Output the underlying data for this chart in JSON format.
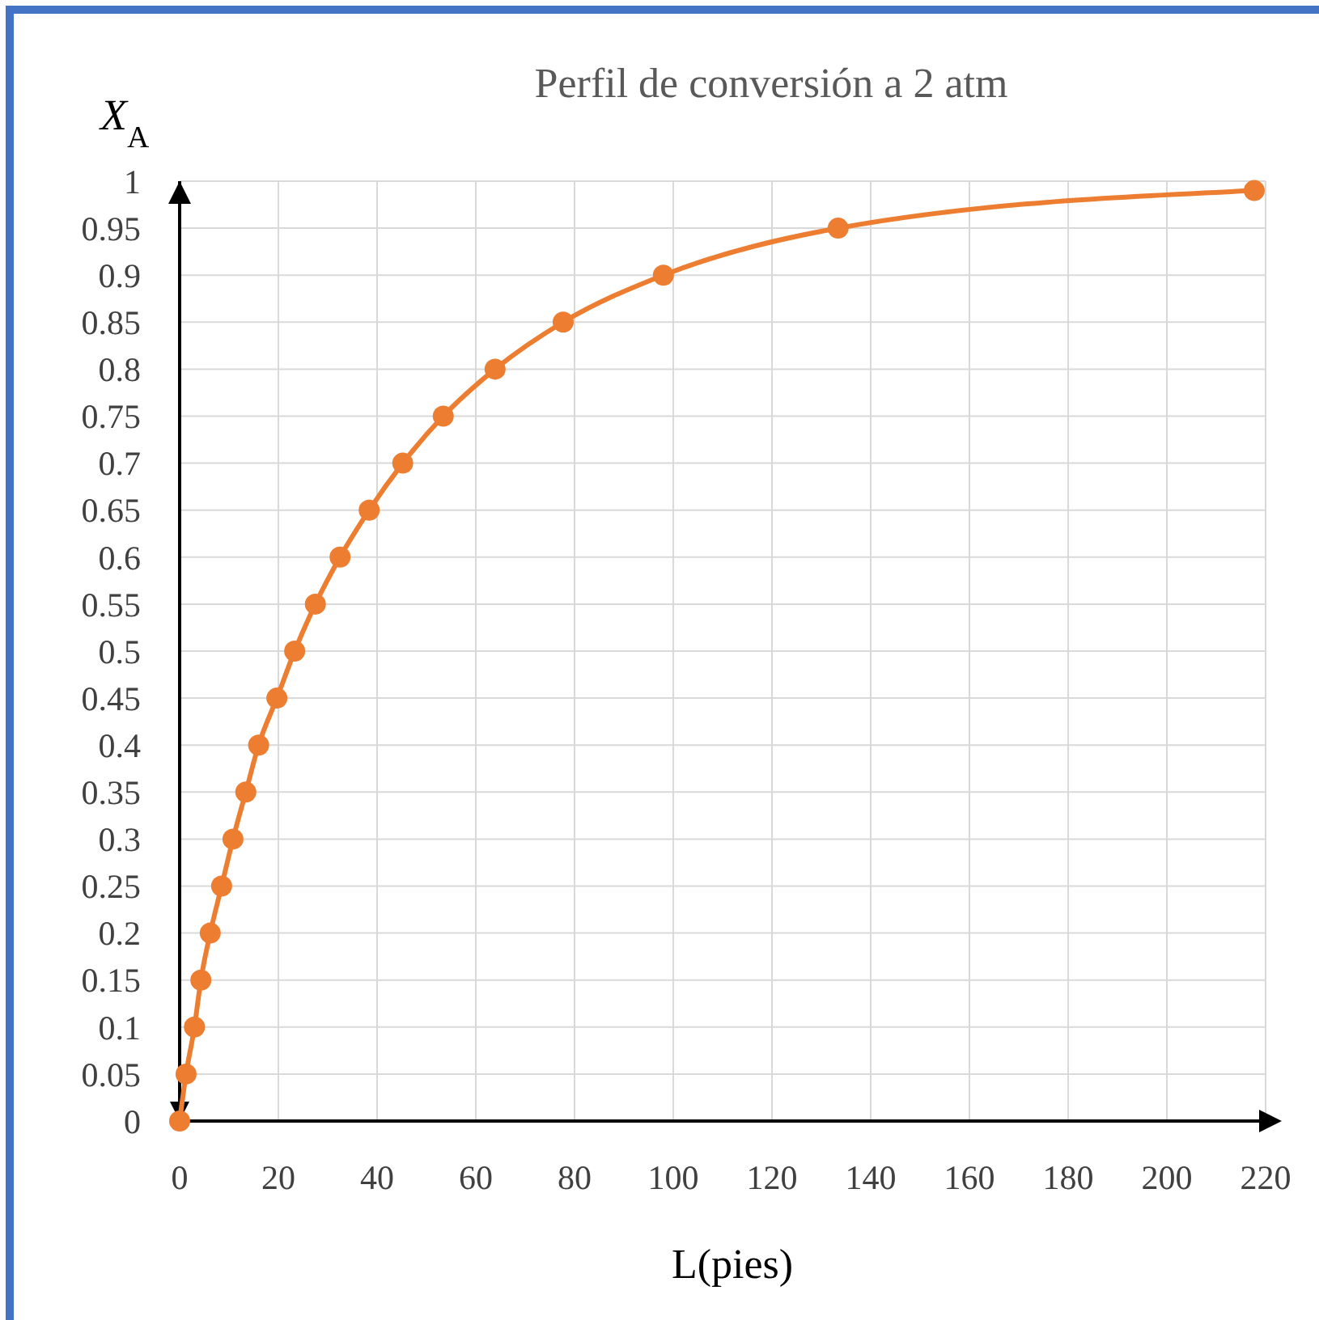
{
  "chart_data": {
    "type": "line",
    "title": "Perfil de conversión a 2 atm",
    "xlabel": "L(pies)",
    "ylabel": "X$_{A}$",
    "x": [
      0,
      1.3,
      3,
      4.3,
      6.2,
      8.5,
      10.8,
      13.4,
      16,
      19.7,
      23.3,
      27.5,
      32.5,
      38.4,
      45.2,
      53.4,
      63.9,
      77.7,
      98,
      133.4,
      217.7
    ],
    "series": [
      {
        "color": "#ed7d31",
        "values": [
          0,
          0.05,
          0.1,
          0.15,
          0.2,
          0.25,
          0.3,
          0.35,
          0.4,
          0.45,
          0.5,
          0.55,
          0.6,
          0.65,
          0.7,
          0.75,
          0.8,
          0.85,
          0.9,
          0.95,
          0.99
        ]
      }
    ],
    "xlim": [
      0,
      220
    ],
    "xticks": [
      0,
      20,
      40,
      60,
      80,
      100,
      120,
      140,
      160,
      180,
      200,
      220
    ],
    "ylim": [
      0,
      1
    ],
    "yticks": [
      0,
      0.05,
      0.1,
      0.15,
      0.2,
      0.25,
      0.3,
      0.35,
      0.4,
      0.45,
      0.5,
      0.55,
      0.6,
      0.65,
      0.7,
      0.75,
      0.8,
      0.85,
      0.9,
      0.95,
      1
    ],
    "grid": true,
    "marker": "circle",
    "line_style": "solid"
  }
}
